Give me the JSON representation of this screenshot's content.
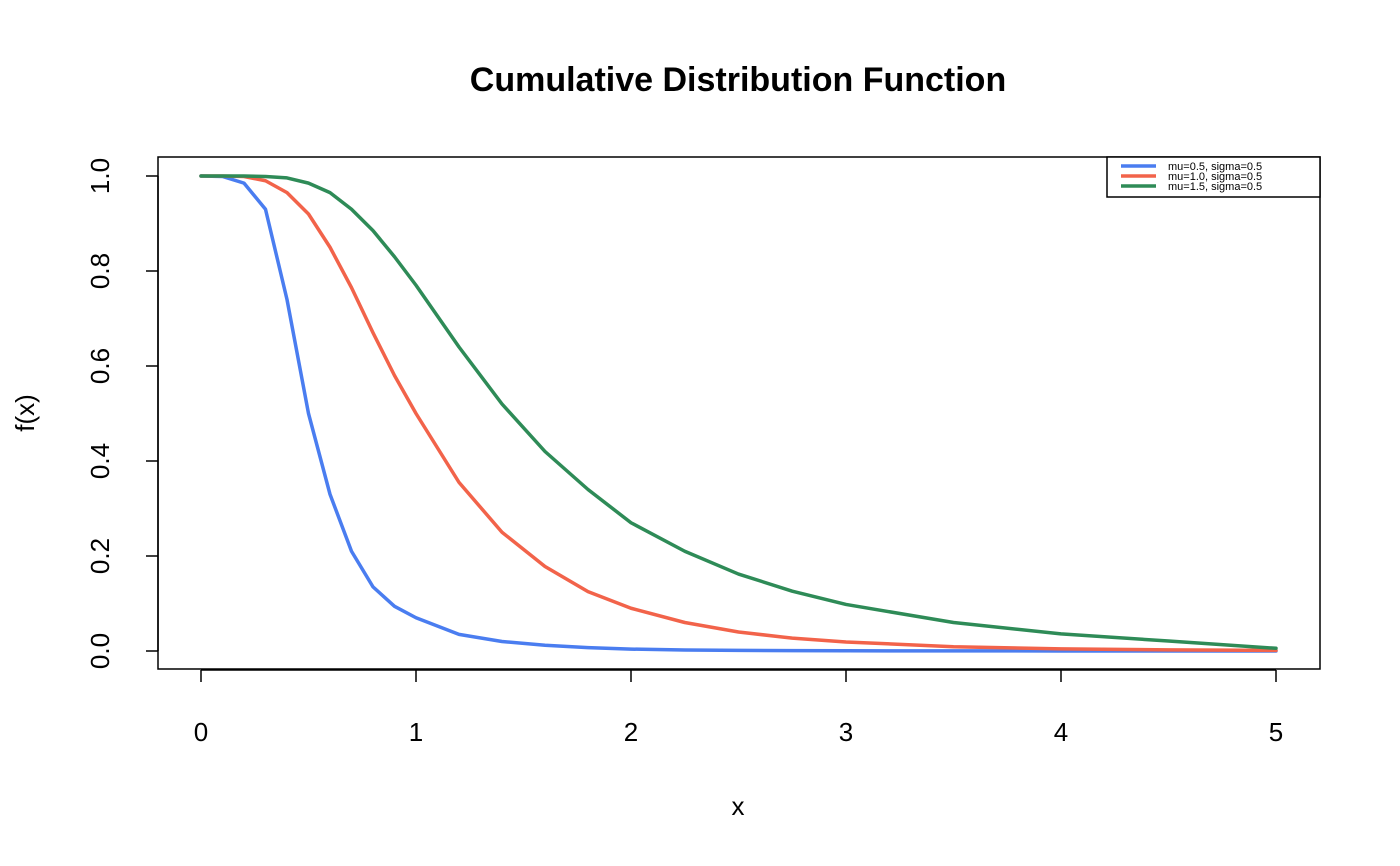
{
  "chart_data": {
    "type": "line",
    "title": "Cumulative Distribution Function",
    "xlabel": "x",
    "ylabel": "f(x)",
    "xlim": [
      0,
      5
    ],
    "ylim": [
      0,
      1
    ],
    "xticks": [
      0,
      1,
      2,
      3,
      4,
      5
    ],
    "xtick_labels": [
      "0",
      "1",
      "2",
      "3",
      "4",
      "5"
    ],
    "yticks": [
      0,
      0.2,
      0.4,
      0.6,
      0.8,
      1.0
    ],
    "ytick_labels": [
      "0.0",
      "0.2",
      "0.4",
      "0.6",
      "0.8",
      "1.0"
    ],
    "grid": false,
    "legend_position": "top-right",
    "x": [
      0,
      0.1,
      0.2,
      0.3,
      0.4,
      0.5,
      0.6,
      0.7,
      0.8,
      0.9,
      1.0,
      1.2,
      1.4,
      1.6,
      1.8,
      2.0,
      2.25,
      2.5,
      2.75,
      3.0,
      3.5,
      4.0,
      4.5,
      5.0
    ],
    "series": [
      {
        "name": "mu=0.5, sigma=0.5",
        "color": "#4a7df0",
        "values": [
          1.0,
          0.999,
          0.985,
          0.93,
          0.74,
          0.5,
          0.33,
          0.21,
          0.135,
          0.094,
          0.07,
          0.035,
          0.02,
          0.012,
          0.007,
          0.004,
          0.002,
          0.0012,
          0.0007,
          0.0004,
          0.0002,
          0.0001,
          5e-05,
          2e-05
        ]
      },
      {
        "name": "mu=1.0, sigma=0.5",
        "color": "#f2634a",
        "values": [
          1.0,
          1.0,
          0.999,
          0.99,
          0.965,
          0.92,
          0.85,
          0.765,
          0.67,
          0.58,
          0.5,
          0.355,
          0.25,
          0.178,
          0.125,
          0.09,
          0.06,
          0.04,
          0.027,
          0.019,
          0.009,
          0.0045,
          0.0023,
          0.0012
        ]
      },
      {
        "name": "mu=1.5, sigma=0.5",
        "color": "#2e8b57",
        "values": [
          1.0,
          1.0,
          1.0,
          0.999,
          0.996,
          0.985,
          0.965,
          0.93,
          0.885,
          0.83,
          0.77,
          0.64,
          0.52,
          0.42,
          0.34,
          0.27,
          0.21,
          0.162,
          0.126,
          0.098,
          0.06,
          0.036,
          0.021,
          0.0057
        ]
      }
    ]
  }
}
